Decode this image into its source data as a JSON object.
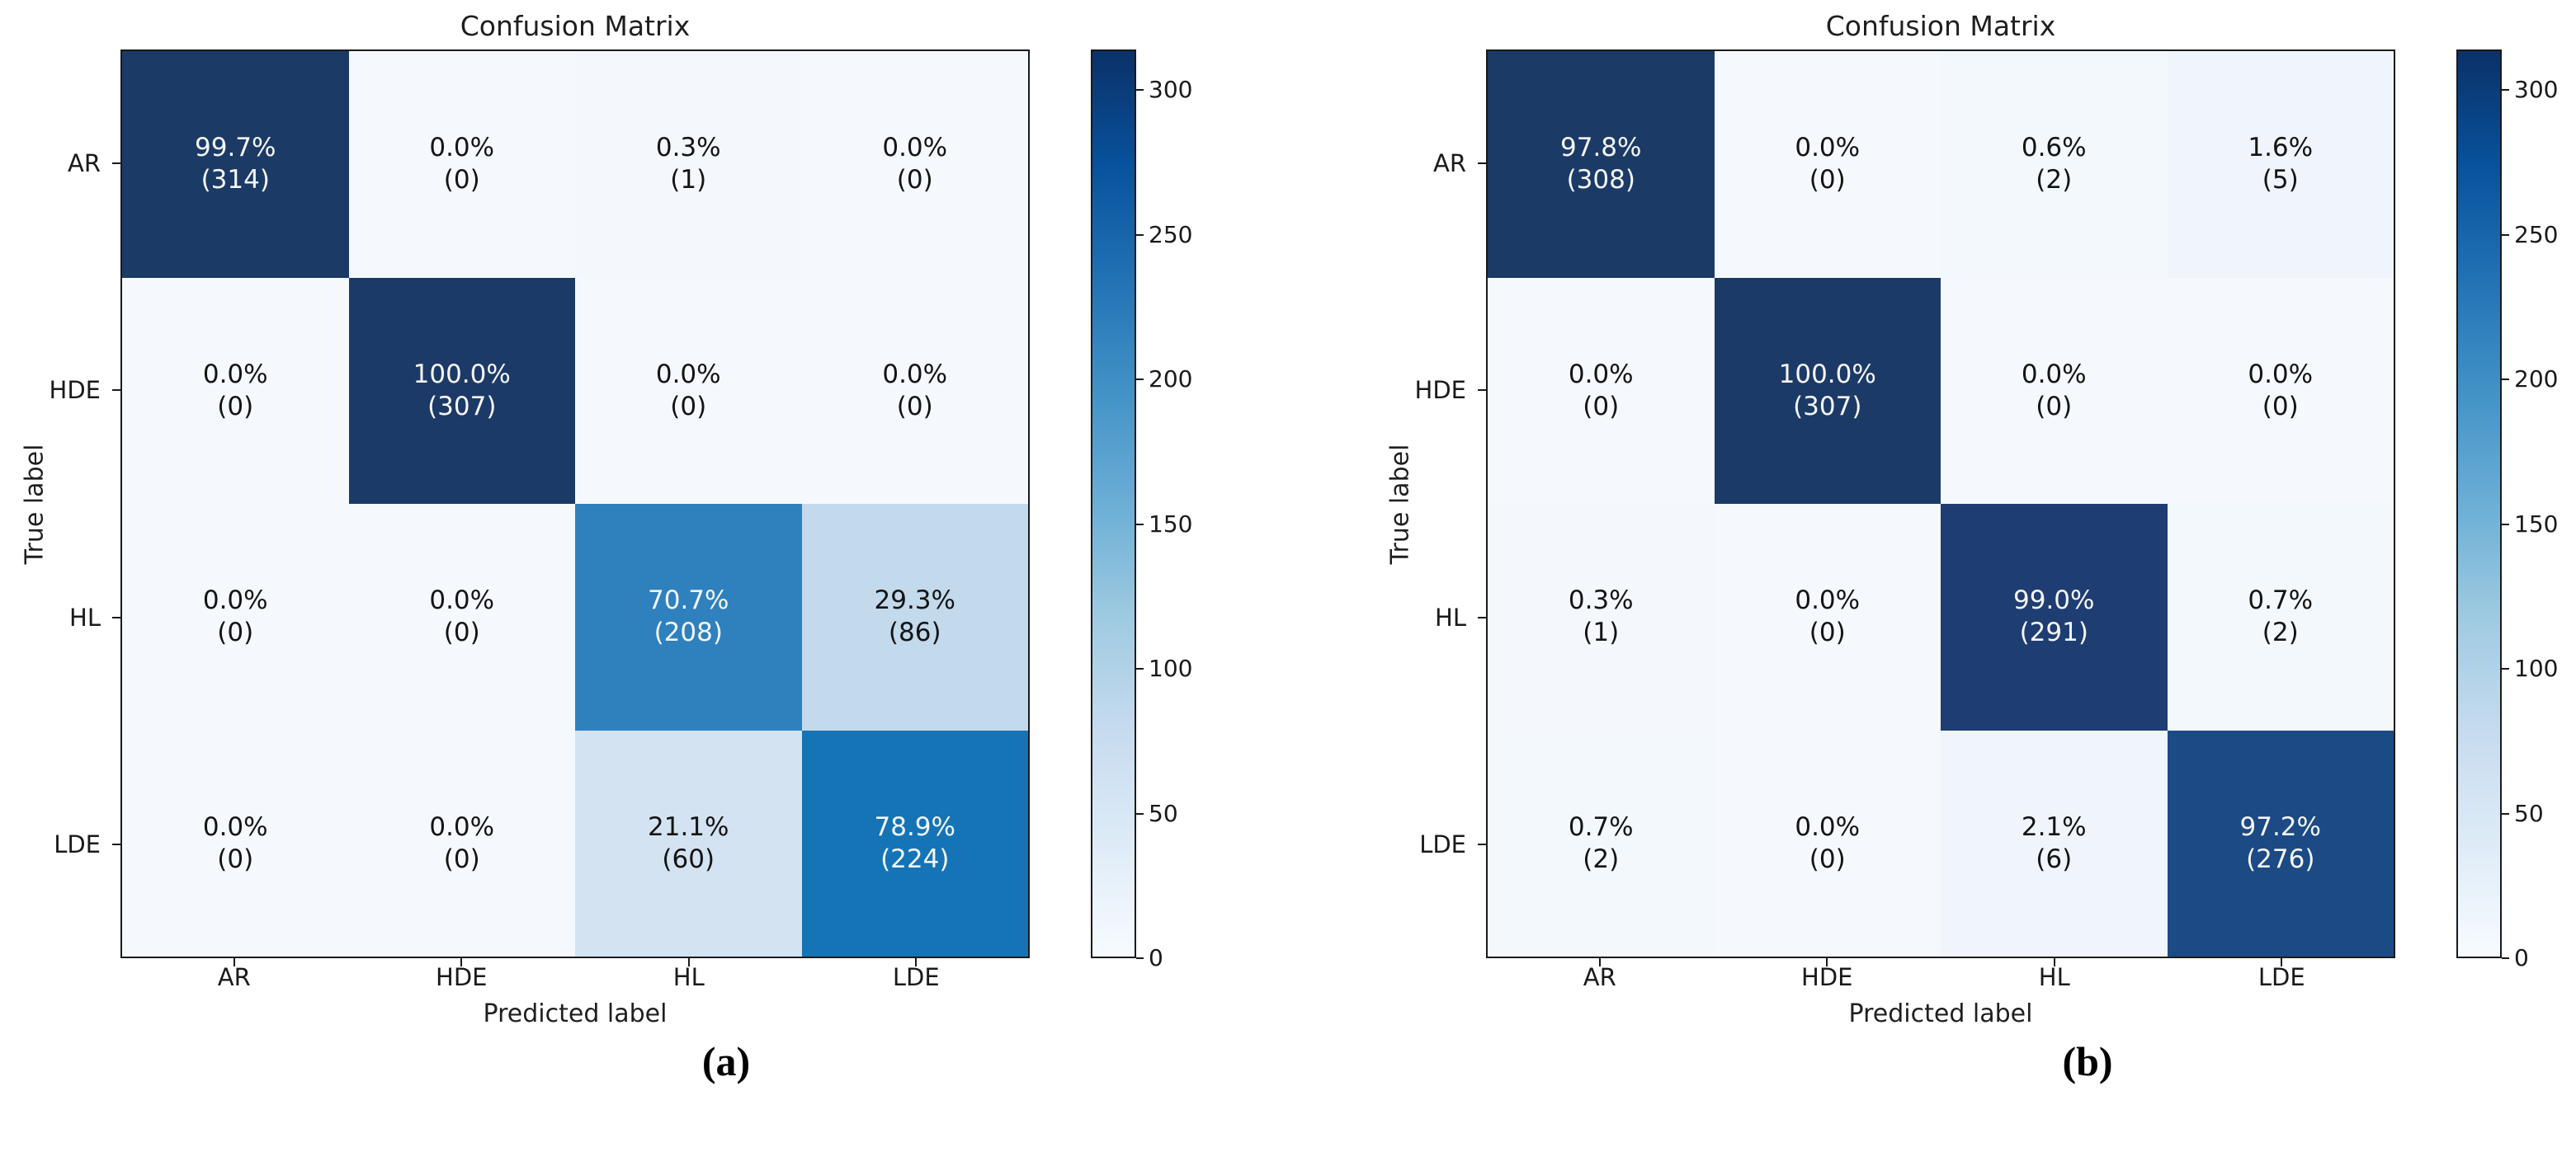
{
  "figure": {
    "panels": [
      {
        "id": "a",
        "caption": "(a)",
        "title": "Confusion Matrix",
        "x_label": "Predicted label",
        "y_label": "True label",
        "classes": [
          "AR",
          "HDE",
          "HL",
          "LDE"
        ],
        "colorbar": {
          "vmin": 0,
          "vmax": 314,
          "tick_values": [
            0,
            50,
            100,
            150,
            200,
            250,
            300
          ],
          "tick_labels": [
            "0",
            "50",
            "100",
            "150",
            "200",
            "250",
            "300"
          ]
        },
        "cells": [
          [
            {
              "pct": "99.7%",
              "count": "(314)",
              "bg": "#1b3a66",
              "fg": "#f5f5f5"
            },
            {
              "pct": "0.0%",
              "count": "(0)",
              "bg": "#f5f9fd",
              "fg": "#141414"
            },
            {
              "pct": "0.3%",
              "count": "(1)",
              "bg": "#f4f8fd",
              "fg": "#141414"
            },
            {
              "pct": "0.0%",
              "count": "(0)",
              "bg": "#f5f9fd",
              "fg": "#141414"
            }
          ],
          [
            {
              "pct": "0.0%",
              "count": "(0)",
              "bg": "#f5f9fd",
              "fg": "#141414"
            },
            {
              "pct": "100.0%",
              "count": "(307)",
              "bg": "#1c3a67",
              "fg": "#f5f5f5"
            },
            {
              "pct": "0.0%",
              "count": "(0)",
              "bg": "#f5f9fd",
              "fg": "#141414"
            },
            {
              "pct": "0.0%",
              "count": "(0)",
              "bg": "#f5f9fd",
              "fg": "#141414"
            }
          ],
          [
            {
              "pct": "0.0%",
              "count": "(0)",
              "bg": "#f5f9fd",
              "fg": "#141414"
            },
            {
              "pct": "0.0%",
              "count": "(0)",
              "bg": "#f5f9fd",
              "fg": "#141414"
            },
            {
              "pct": "70.7%",
              "count": "(208)",
              "bg": "#2e81bd",
              "fg": "#f5f5f5"
            },
            {
              "pct": "29.3%",
              "count": "(86)",
              "bg": "#c3d9ec",
              "fg": "#141414"
            }
          ],
          [
            {
              "pct": "0.0%",
              "count": "(0)",
              "bg": "#f5f9fd",
              "fg": "#141414"
            },
            {
              "pct": "0.0%",
              "count": "(0)",
              "bg": "#f5f9fd",
              "fg": "#141414"
            },
            {
              "pct": "21.1%",
              "count": "(60)",
              "bg": "#d3e3f2",
              "fg": "#141414"
            },
            {
              "pct": "78.9%",
              "count": "(224)",
              "bg": "#1474b6",
              "fg": "#f5f5f5"
            }
          ]
        ]
      },
      {
        "id": "b",
        "caption": "(b)",
        "title": "Confusion Matrix",
        "x_label": "Predicted label",
        "y_label": "True label",
        "classes": [
          "AR",
          "HDE",
          "HL",
          "LDE"
        ],
        "colorbar": {
          "vmin": 0,
          "vmax": 314,
          "tick_values": [
            0,
            50,
            100,
            150,
            200,
            250,
            300
          ],
          "tick_labels": [
            "0",
            "50",
            "100",
            "150",
            "200",
            "250",
            "300"
          ]
        },
        "cells": [
          [
            {
              "pct": "97.8%",
              "count": "(308)",
              "bg": "#1b3a66",
              "fg": "#f5f5f5"
            },
            {
              "pct": "0.0%",
              "count": "(0)",
              "bg": "#f5f9fd",
              "fg": "#141414"
            },
            {
              "pct": "0.6%",
              "count": "(2)",
              "bg": "#f3f8fd",
              "fg": "#141414"
            },
            {
              "pct": "1.6%",
              "count": "(5)",
              "bg": "#f0f5fb",
              "fg": "#141414"
            }
          ],
          [
            {
              "pct": "0.0%",
              "count": "(0)",
              "bg": "#f5f9fd",
              "fg": "#141414"
            },
            {
              "pct": "100.0%",
              "count": "(307)",
              "bg": "#1c3a67",
              "fg": "#f5f5f5"
            },
            {
              "pct": "0.0%",
              "count": "(0)",
              "bg": "#f5f9fd",
              "fg": "#141414"
            },
            {
              "pct": "0.0%",
              "count": "(0)",
              "bg": "#f5f9fd",
              "fg": "#141414"
            }
          ],
          [
            {
              "pct": "0.3%",
              "count": "(1)",
              "bg": "#f4f8fd",
              "fg": "#141414"
            },
            {
              "pct": "0.0%",
              "count": "(0)",
              "bg": "#f5f9fd",
              "fg": "#141414"
            },
            {
              "pct": "99.0%",
              "count": "(291)",
              "bg": "#1e3d72",
              "fg": "#f5f5f5"
            },
            {
              "pct": "0.7%",
              "count": "(2)",
              "bg": "#f3f8fd",
              "fg": "#141414"
            }
          ],
          [
            {
              "pct": "0.7%",
              "count": "(2)",
              "bg": "#f3f8fd",
              "fg": "#141414"
            },
            {
              "pct": "0.0%",
              "count": "(0)",
              "bg": "#f5f9fd",
              "fg": "#141414"
            },
            {
              "pct": "2.1%",
              "count": "(6)",
              "bg": "#eff5fb",
              "fg": "#141414"
            },
            {
              "pct": "97.2%",
              "count": "(276)",
              "bg": "#1b4a85",
              "fg": "#f5f5f5"
            }
          ]
        ]
      }
    ],
    "colormap_stops": [
      "#f7fbff",
      "#deebf7",
      "#c6dbef",
      "#9ecae1",
      "#6baed6",
      "#4292c6",
      "#2171b5",
      "#08519c",
      "#0b3168"
    ]
  },
  "chart_data": [
    {
      "type": "heatmap",
      "title": "Confusion Matrix",
      "xlabel": "Predicted label",
      "ylabel": "True label",
      "x_categories": [
        "AR",
        "HDE",
        "HL",
        "LDE"
      ],
      "y_categories": [
        "AR",
        "HDE",
        "HL",
        "LDE"
      ],
      "values": [
        [
          314,
          0,
          1,
          0
        ],
        [
          0,
          307,
          0,
          0
        ],
        [
          0,
          0,
          208,
          86
        ],
        [
          0,
          0,
          60,
          224
        ]
      ],
      "percent": [
        [
          99.7,
          0.0,
          0.3,
          0.0
        ],
        [
          0.0,
          100.0,
          0.0,
          0.0
        ],
        [
          0.0,
          0.0,
          70.7,
          29.3
        ],
        [
          0.0,
          0.0,
          21.1,
          78.9
        ]
      ],
      "colormap": "Blues",
      "colorbar_ticks": [
        0,
        50,
        100,
        150,
        200,
        250,
        300
      ],
      "colorbar_range": [
        0,
        314
      ],
      "legend_position": "right-colorbar",
      "caption": "(a)"
    },
    {
      "type": "heatmap",
      "title": "Confusion Matrix",
      "xlabel": "Predicted label",
      "ylabel": "True label",
      "x_categories": [
        "AR",
        "HDE",
        "HL",
        "LDE"
      ],
      "y_categories": [
        "AR",
        "HDE",
        "HL",
        "LDE"
      ],
      "values": [
        [
          308,
          0,
          2,
          5
        ],
        [
          0,
          307,
          0,
          0
        ],
        [
          1,
          0,
          291,
          2
        ],
        [
          2,
          0,
          6,
          276
        ]
      ],
      "percent": [
        [
          97.8,
          0.0,
          0.6,
          1.6
        ],
        [
          0.0,
          100.0,
          0.0,
          0.0
        ],
        [
          0.3,
          0.0,
          99.0,
          0.7
        ],
        [
          0.7,
          0.0,
          2.1,
          97.2
        ]
      ],
      "colormap": "Blues",
      "colorbar_ticks": [
        0,
        50,
        100,
        150,
        200,
        250,
        300
      ],
      "colorbar_range": [
        0,
        314
      ],
      "legend_position": "right-colorbar",
      "caption": "(b)"
    }
  ]
}
